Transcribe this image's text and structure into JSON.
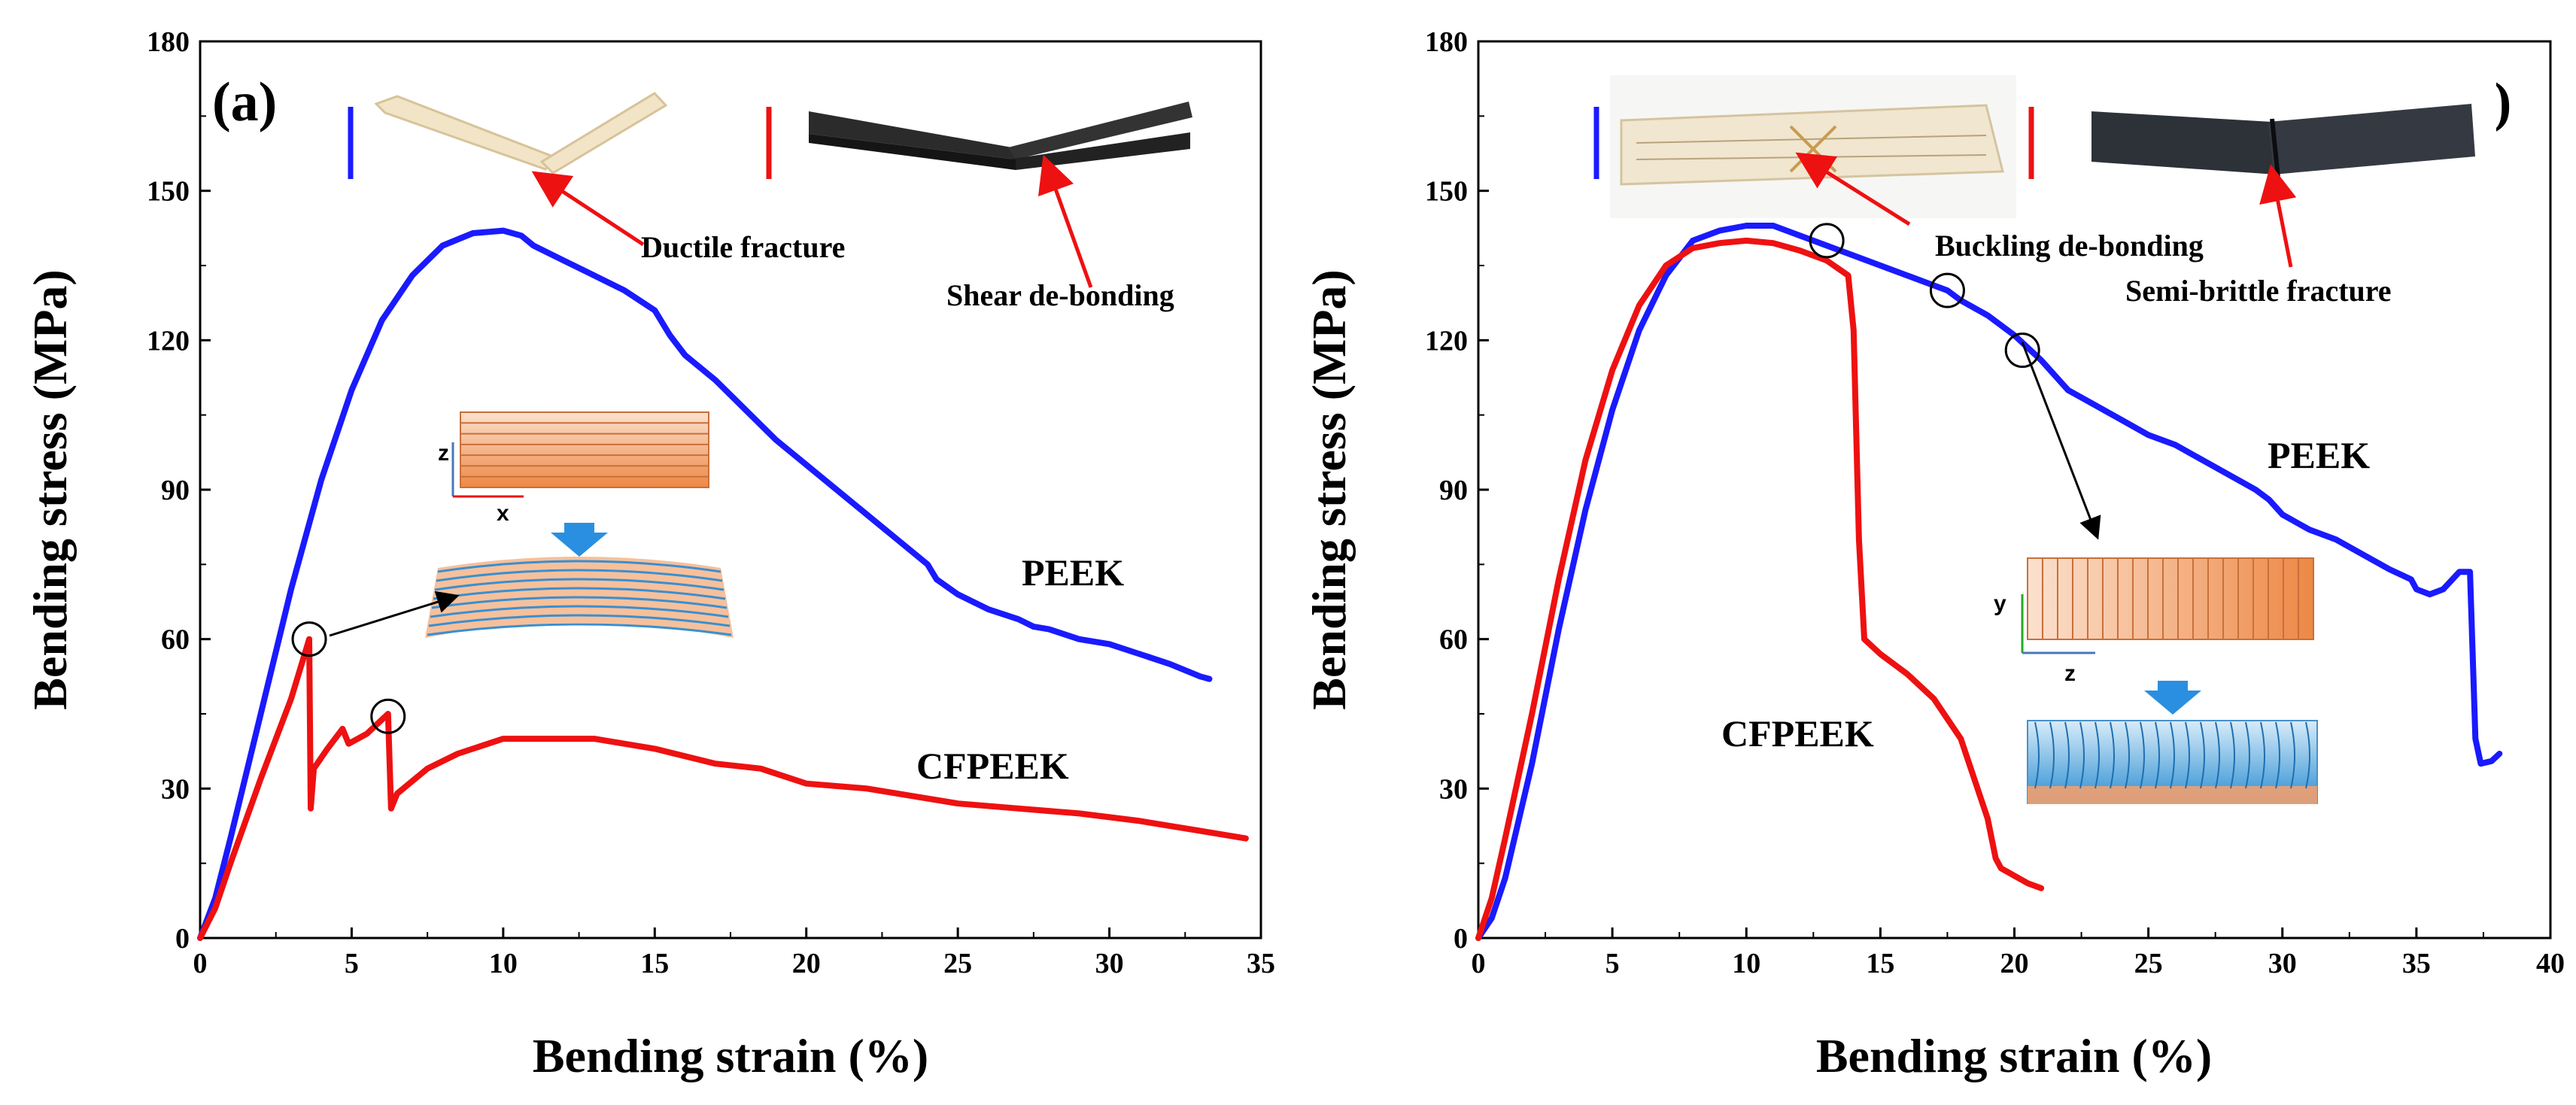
{
  "chart_data": [
    {
      "type": "line",
      "panel_label": "(a)",
      "xlabel": "Bending strain (%)",
      "ylabel": "Bending stress (MPa)",
      "xlim": [
        0,
        35
      ],
      "ylim": [
        0,
        180
      ],
      "xticks": [
        "0",
        "5",
        "10",
        "15",
        "20",
        "25",
        "30",
        "35"
      ],
      "yticks": [
        "0",
        "30",
        "60",
        "90",
        "120",
        "150",
        "180"
      ],
      "series": [
        {
          "name": "PEEK",
          "color": "#1a1aff",
          "points": [
            [
              0,
              0
            ],
            [
              0.5,
              8
            ],
            [
              1,
              20
            ],
            [
              2,
              45
            ],
            [
              3,
              70
            ],
            [
              4,
              92
            ],
            [
              5,
              110
            ],
            [
              6,
              124
            ],
            [
              7,
              133
            ],
            [
              8,
              139
            ],
            [
              9,
              141.5
            ],
            [
              10,
              142
            ],
            [
              10.6,
              141
            ],
            [
              11,
              139
            ],
            [
              12,
              136
            ],
            [
              13,
              133
            ],
            [
              14,
              130
            ],
            [
              15,
              126
            ],
            [
              15.5,
              121
            ],
            [
              16,
              117
            ],
            [
              17,
              112
            ],
            [
              18,
              106
            ],
            [
              19,
              100
            ],
            [
              20,
              95
            ],
            [
              21,
              90
            ],
            [
              22,
              85
            ],
            [
              23,
              80
            ],
            [
              24,
              75
            ],
            [
              24.3,
              72
            ],
            [
              25,
              69
            ],
            [
              26,
              66
            ],
            [
              27,
              64
            ],
            [
              27.5,
              62.5
            ],
            [
              28,
              62
            ],
            [
              29,
              60
            ],
            [
              30,
              59
            ],
            [
              31,
              57
            ],
            [
              32,
              55
            ],
            [
              33,
              52.5
            ],
            [
              33.3,
              52
            ]
          ]
        },
        {
          "name": "CFPEEK",
          "color": "#ee1111",
          "points": [
            [
              0,
              0
            ],
            [
              0.5,
              6
            ],
            [
              1,
              15
            ],
            [
              2,
              32
            ],
            [
              3,
              48
            ],
            [
              3.6,
              60
            ],
            [
              3.65,
              26
            ],
            [
              3.75,
              34
            ],
            [
              4.2,
              38
            ],
            [
              4.7,
              42
            ],
            [
              4.9,
              39
            ],
            [
              5.5,
              41
            ],
            [
              6.2,
              45
            ],
            [
              6.3,
              26
            ],
            [
              6.5,
              29
            ],
            [
              7.5,
              34
            ],
            [
              8.5,
              37
            ],
            [
              10,
              40
            ],
            [
              11,
              40
            ],
            [
              13,
              40
            ],
            [
              15,
              38
            ],
            [
              17,
              35
            ],
            [
              18.5,
              34
            ],
            [
              19.5,
              32
            ],
            [
              20,
              31
            ],
            [
              22,
              30
            ],
            [
              24,
              28
            ],
            [
              25,
              27
            ],
            [
              27,
              26
            ],
            [
              29,
              25
            ],
            [
              31,
              23.5
            ],
            [
              33,
              21.5
            ],
            [
              34.5,
              20
            ]
          ]
        }
      ],
      "curve_labels": [
        "PEEK",
        "CFPEEK"
      ],
      "annotations": [
        "Ductile fracture",
        "Shear de-bonding"
      ],
      "markers": [
        [
          3.6,
          60
        ],
        [
          6.2,
          44.5
        ]
      ],
      "schematic_axes": [
        "z",
        "x"
      ]
    },
    {
      "type": "line",
      "panel_label": "(b)",
      "xlabel": "Bending strain (%)",
      "ylabel": "Bending stress (MPa)",
      "xlim": [
        0,
        40
      ],
      "ylim": [
        0,
        180
      ],
      "xticks": [
        "0",
        "5",
        "10",
        "15",
        "20",
        "25",
        "30",
        "35",
        "40"
      ],
      "yticks": [
        "0",
        "30",
        "60",
        "90",
        "120",
        "150",
        "180"
      ],
      "series": [
        {
          "name": "PEEK",
          "color": "#1a1aff",
          "points": [
            [
              0,
              0
            ],
            [
              0.5,
              4
            ],
            [
              1,
              12
            ],
            [
              2,
              35
            ],
            [
              3,
              62
            ],
            [
              4,
              86
            ],
            [
              5,
              106
            ],
            [
              6,
              122
            ],
            [
              7,
              133
            ],
            [
              8,
              140
            ],
            [
              9,
              142
            ],
            [
              10,
              143
            ],
            [
              11,
              143
            ],
            [
              12,
              141
            ],
            [
              13,
              139
            ],
            [
              14,
              137
            ],
            [
              15,
              135
            ],
            [
              16,
              133
            ],
            [
              17,
              131
            ],
            [
              17.5,
              130
            ],
            [
              18,
              128
            ],
            [
              19,
              125
            ],
            [
              20,
              121
            ],
            [
              21,
              116
            ],
            [
              22,
              110
            ],
            [
              23,
              107
            ],
            [
              24,
              104
            ],
            [
              25,
              101
            ],
            [
              26,
              99
            ],
            [
              27,
              96
            ],
            [
              28,
              93
            ],
            [
              29,
              90
            ],
            [
              29.5,
              88
            ],
            [
              30,
              85
            ],
            [
              31,
              82
            ],
            [
              32,
              80
            ],
            [
              33,
              77
            ],
            [
              34,
              74
            ],
            [
              34.8,
              72
            ],
            [
              35,
              70
            ],
            [
              35.5,
              69
            ],
            [
              36,
              70
            ],
            [
              36.6,
              73.5
            ],
            [
              37,
              73.5
            ],
            [
              37.2,
              40
            ],
            [
              37.4,
              35
            ],
            [
              37.8,
              35.5
            ],
            [
              38.1,
              37
            ]
          ]
        },
        {
          "name": "CFPEEK",
          "color": "#ee1111",
          "points": [
            [
              0,
              0
            ],
            [
              0.5,
              8
            ],
            [
              1,
              20
            ],
            [
              2,
              45
            ],
            [
              3,
              72
            ],
            [
              4,
              96
            ],
            [
              5,
              114
            ],
            [
              6,
              127
            ],
            [
              7,
              135
            ],
            [
              8,
              138.5
            ],
            [
              9,
              139.5
            ],
            [
              10,
              140
            ],
            [
              11,
              139.5
            ],
            [
              12,
              138
            ],
            [
              13,
              136
            ],
            [
              13.8,
              133
            ],
            [
              14,
              122
            ],
            [
              14.2,
              80
            ],
            [
              14.4,
              60
            ],
            [
              15,
              57
            ],
            [
              16,
              53
            ],
            [
              17,
              48
            ],
            [
              18,
              40
            ],
            [
              18.5,
              32
            ],
            [
              19,
              24
            ],
            [
              19.3,
              16
            ],
            [
              19.5,
              14
            ],
            [
              20,
              12.5
            ],
            [
              20.5,
              11
            ],
            [
              21,
              10
            ]
          ]
        }
      ],
      "curve_labels": [
        "PEEK",
        "CFPEEK"
      ],
      "annotations": [
        "Buckling de-bonding",
        "Semi-brittle fracture"
      ],
      "markers": [
        [
          13,
          140
        ],
        [
          17.5,
          130
        ],
        [
          20.3,
          118
        ]
      ],
      "schematic_axes": [
        "y",
        "z"
      ]
    }
  ]
}
